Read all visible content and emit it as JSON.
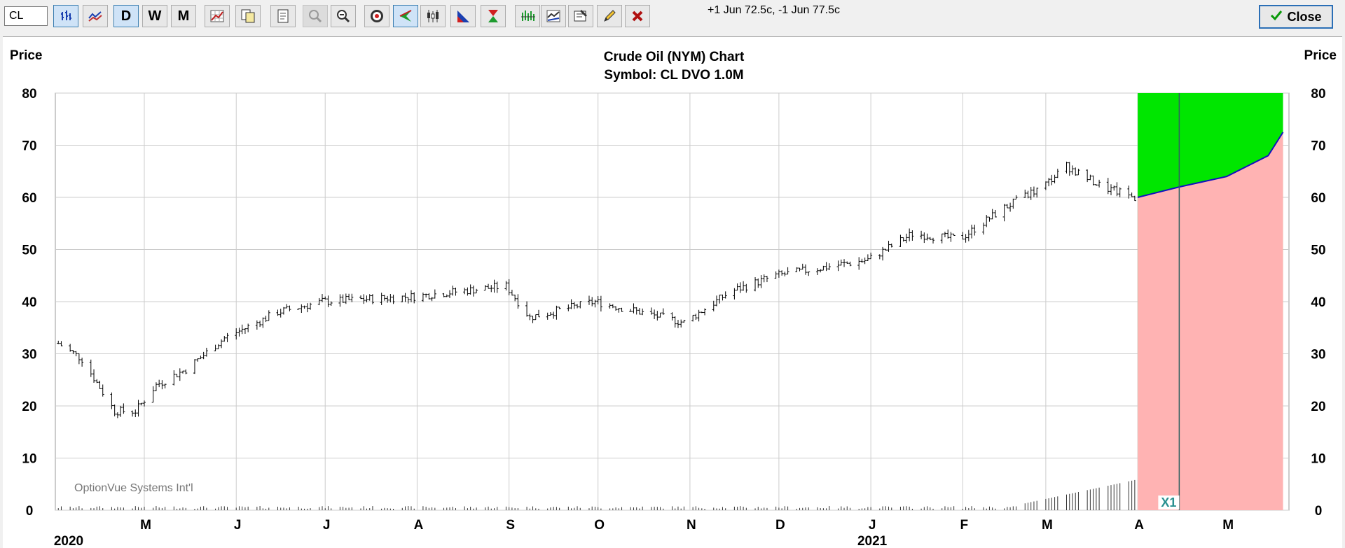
{
  "toolbar": {
    "symbol_value": "CL",
    "buttons": [
      {
        "name": "bar-chart-icon",
        "pressed": true
      },
      {
        "name": "line-chart-icon",
        "pressed": false
      },
      {
        "name": "daily-button",
        "label": "D",
        "pressed": true
      },
      {
        "name": "weekly-button",
        "label": "W",
        "pressed": false
      },
      {
        "name": "monthly-button",
        "label": "M",
        "pressed": false
      },
      {
        "name": "grid-chart-icon"
      },
      {
        "name": "copy-icon"
      },
      {
        "name": "print-icon"
      },
      {
        "name": "zoom-in-icon",
        "disabled": true
      },
      {
        "name": "zoom-out-icon"
      },
      {
        "name": "target-icon"
      },
      {
        "name": "arrow-left-icon",
        "pressed": true
      },
      {
        "name": "candlestick-icon"
      },
      {
        "name": "volume-triangle-icon"
      },
      {
        "name": "hourglass-icon"
      },
      {
        "name": "bar-pattern-icon"
      },
      {
        "name": "indicator-chart-icon"
      },
      {
        "name": "notes-icon"
      },
      {
        "name": "pencil-icon"
      },
      {
        "name": "delete-x-icon"
      }
    ],
    "status": "+1 Jun 72.5c, -1 Jun 77.5c",
    "close_label": "Close"
  },
  "colors": {
    "projection_up": "#00e600",
    "projection_down": "#ffb3b3",
    "projection_line": "#1010c0",
    "bars": "#000000",
    "grid": "#cccccc"
  },
  "chart_data": {
    "type": "bar",
    "title": "Crude Oil (NYM) Chart",
    "subtitle": "Symbol: CL  DVO 1.0M",
    "ylabel": "Price",
    "ylim": [
      0,
      80
    ],
    "yticks": [
      0,
      10,
      20,
      30,
      40,
      50,
      60,
      70,
      80
    ],
    "watermark": "OptionVue Systems Int'l",
    "marker_label": "X1",
    "months": [
      "M",
      "J",
      "J",
      "A",
      "S",
      "O",
      "N",
      "D",
      "J",
      "F",
      "M",
      "A",
      "M"
    ],
    "years": [
      {
        "label": "2020",
        "month_index": 0
      },
      {
        "label": "2021",
        "month_index": 8
      }
    ],
    "anchor_prices": [
      {
        "date": "2020-04-02",
        "price": 32
      },
      {
        "date": "2020-04-10",
        "price": 29
      },
      {
        "date": "2020-04-21",
        "price": 19
      },
      {
        "date": "2020-04-28",
        "price": 19
      },
      {
        "date": "2020-05-05",
        "price": 24
      },
      {
        "date": "2020-05-15",
        "price": 27
      },
      {
        "date": "2020-05-28",
        "price": 33
      },
      {
        "date": "2020-06-08",
        "price": 36
      },
      {
        "date": "2020-06-15",
        "price": 38
      },
      {
        "date": "2020-06-30",
        "price": 40
      },
      {
        "date": "2020-07-31",
        "price": 41
      },
      {
        "date": "2020-08-31",
        "price": 43
      },
      {
        "date": "2020-09-08",
        "price": 37
      },
      {
        "date": "2020-09-30",
        "price": 40
      },
      {
        "date": "2020-10-30",
        "price": 36
      },
      {
        "date": "2020-11-15",
        "price": 42
      },
      {
        "date": "2020-11-30",
        "price": 45
      },
      {
        "date": "2020-12-31",
        "price": 48
      },
      {
        "date": "2021-01-15",
        "price": 53
      },
      {
        "date": "2021-01-31",
        "price": 52
      },
      {
        "date": "2021-02-15",
        "price": 58
      },
      {
        "date": "2021-02-28",
        "price": 62
      },
      {
        "date": "2021-03-08",
        "price": 66
      },
      {
        "date": "2021-03-20",
        "price": 62
      },
      {
        "date": "2021-03-31",
        "price": 60
      }
    ],
    "projection": [
      {
        "date": "2021-04-01",
        "price": 60
      },
      {
        "date": "2021-04-15",
        "price": 62
      },
      {
        "date": "2021-05-01",
        "price": 64
      },
      {
        "date": "2021-05-15",
        "price": 68
      },
      {
        "date": "2021-05-20",
        "price": 72.5
      }
    ]
  }
}
